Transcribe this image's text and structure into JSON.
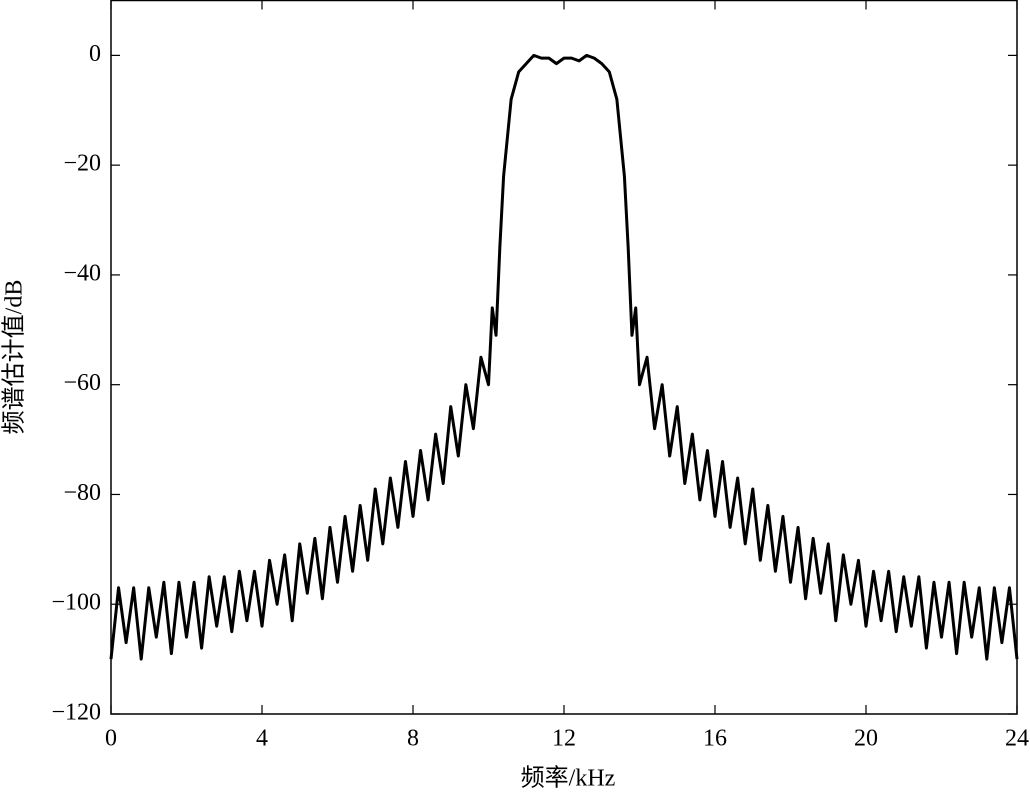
{
  "chart_data": {
    "type": "line",
    "xlabel": "频率/kHz",
    "ylabel": "频谱估计值/dB",
    "xlim": [
      0,
      24
    ],
    "ylim": [
      -120,
      10
    ],
    "xticks": [
      0,
      4,
      8,
      12,
      16,
      20,
      24
    ],
    "yticks": [
      0,
      {
        "value": -20,
        "label": "−20"
      },
      {
        "value": -40,
        "label": "−40"
      },
      {
        "value": -60,
        "label": "−60"
      },
      {
        "value": -80,
        "label": "−80"
      },
      {
        "value": -100,
        "label": "−100"
      },
      {
        "value": -120,
        "label": "−120"
      }
    ],
    "color": "#000000",
    "x": [
      0,
      0.2,
      0.4,
      0.6,
      0.8,
      1.0,
      1.2,
      1.4,
      1.6,
      1.8,
      2.0,
      2.2,
      2.4,
      2.6,
      2.8,
      3.0,
      3.2,
      3.4,
      3.6,
      3.8,
      4.0,
      4.2,
      4.4,
      4.6,
      4.8,
      5.0,
      5.2,
      5.4,
      5.6,
      5.8,
      6.0,
      6.2,
      6.4,
      6.6,
      6.8,
      7.0,
      7.2,
      7.4,
      7.6,
      7.8,
      8.0,
      8.2,
      8.4,
      8.6,
      8.8,
      9.0,
      9.2,
      9.4,
      9.6,
      9.8,
      10.0,
      10.1,
      10.2,
      10.3,
      10.4,
      10.6,
      10.8,
      11.0,
      11.2,
      11.4,
      11.6,
      11.8,
      12.0,
      12.2,
      12.4,
      12.6,
      12.8,
      13.0,
      13.2,
      13.4,
      13.6,
      13.7,
      13.8,
      13.9,
      14.0,
      14.2,
      14.4,
      14.6,
      14.8,
      15.0,
      15.2,
      15.4,
      15.6,
      15.8,
      16.0,
      16.2,
      16.4,
      16.6,
      16.8,
      17.0,
      17.2,
      17.4,
      17.6,
      17.8,
      18.0,
      18.2,
      18.4,
      18.6,
      18.8,
      19.0,
      19.2,
      19.4,
      19.6,
      19.8,
      20.0,
      20.2,
      20.4,
      20.6,
      20.8,
      21.0,
      21.2,
      21.4,
      21.6,
      21.8,
      22.0,
      22.2,
      22.4,
      22.6,
      22.8,
      23.0,
      23.2,
      23.4,
      23.6,
      23.8,
      24.0
    ],
    "values": [
      -110,
      -97,
      -107,
      -97,
      -110,
      -97,
      -106,
      -96,
      -109,
      -96,
      -106,
      -96,
      -108,
      -95,
      -104,
      -95,
      -105,
      -94,
      -103,
      -94,
      -104,
      -92,
      -100,
      -91,
      -103,
      -89,
      -98,
      -88,
      -99,
      -86,
      -96,
      -84,
      -94,
      -82,
      -92,
      -79,
      -89,
      -77,
      -86,
      -74,
      -84,
      -72,
      -81,
      -69,
      -78,
      -64,
      -73,
      -60,
      -68,
      -55,
      -60,
      -46,
      -51,
      -35,
      -22,
      -8,
      -3,
      -1.5,
      0,
      -0.5,
      -0.5,
      -1.5,
      -0.5,
      -0.5,
      -1,
      0,
      -0.5,
      -1.5,
      -3,
      -8,
      -22,
      -35,
      -51,
      -46,
      -60,
      -55,
      -68,
      -60,
      -73,
      -64,
      -78,
      -69,
      -81,
      -72,
      -84,
      -74,
      -86,
      -77,
      -89,
      -79,
      -92,
      -82,
      -94,
      -84,
      -96,
      -86,
      -99,
      -88,
      -98,
      -89,
      -103,
      -91,
      -100,
      -92,
      -104,
      -94,
      -103,
      -94,
      -105,
      -95,
      -104,
      -95,
      -108,
      -96,
      -106,
      -96,
      -109,
      -96,
      -106,
      -97,
      -110,
      -97,
      -107,
      -97,
      -110
    ]
  }
}
